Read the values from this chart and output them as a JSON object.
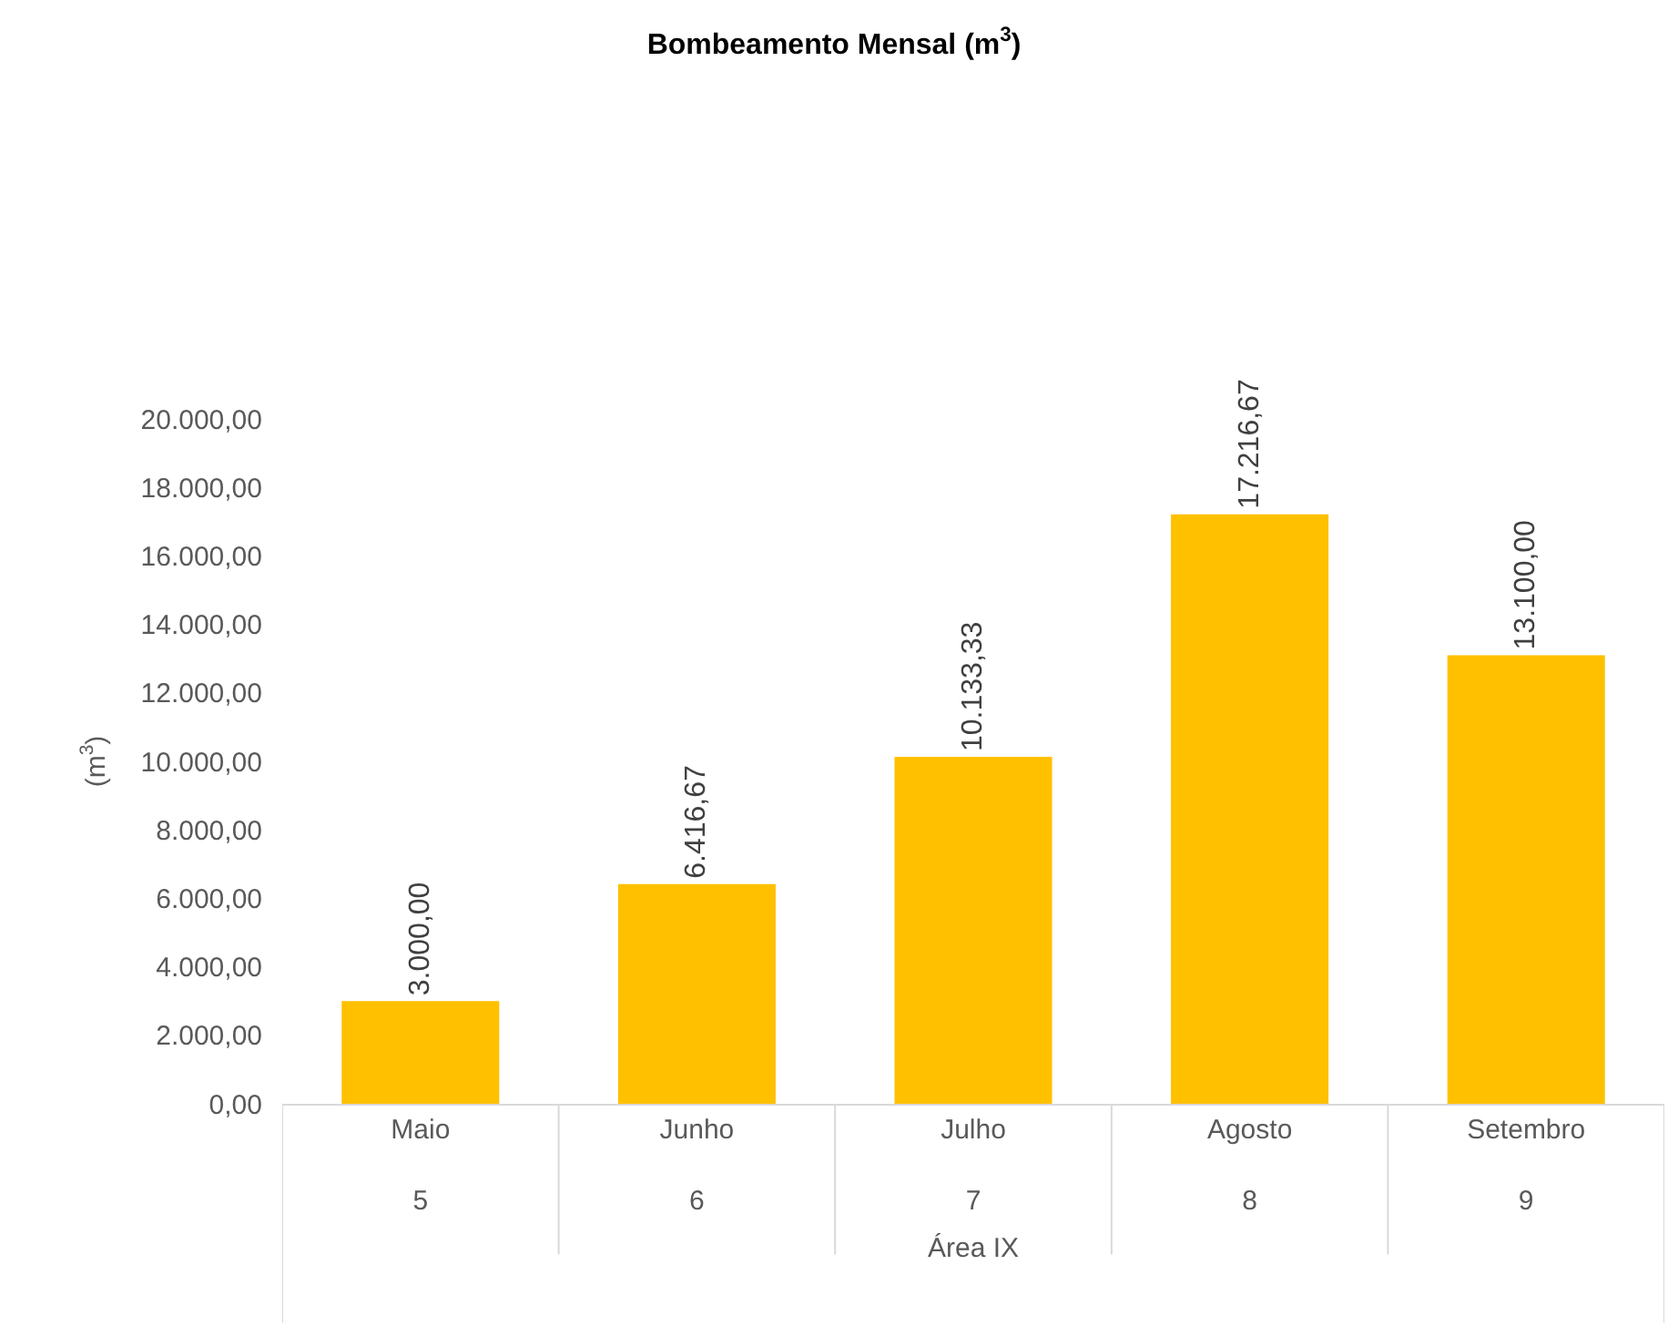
{
  "chart_data": {
    "type": "bar",
    "title": "Bombeamento Mensal (m$^{3}$)",
    "xlabel": "Área IX",
    "ylabel": "(m$^{3}$)",
    "categories": [
      "Maio\n5",
      "Junho\n6",
      "Julho\n7",
      "Agosto\n8",
      "Setembro\n9"
    ],
    "values": [
      3000,
      6416.67,
      10133.33,
      17216.67,
      13100
    ],
    "value_labels": [
      "3.000,00",
      "6.416,67",
      "10.133,33",
      "17.216,67",
      "13.100,00"
    ],
    "color": "#ffc000",
    "ylim": [
      0,
      20000
    ],
    "yticks": [
      {
        "value": 0,
        "label": "0,00"
      },
      {
        "value": 2000,
        "label": "2.000,00"
      },
      {
        "value": 4000,
        "label": "4.000,00"
      },
      {
        "value": 6000,
        "label": "6.000,00"
      },
      {
        "value": 8000,
        "label": "8.000,00"
      },
      {
        "value": 10000,
        "label": "10.000,00"
      },
      {
        "value": 12000,
        "label": "12.000,00"
      },
      {
        "value": 14000,
        "label": "14.000,00"
      },
      {
        "value": 16000,
        "label": "16.000,00"
      },
      {
        "value": 18000,
        "label": "18.000,00"
      },
      {
        "value": 20000,
        "label": "20.000,00"
      }
    ],
    "grid": false
  }
}
